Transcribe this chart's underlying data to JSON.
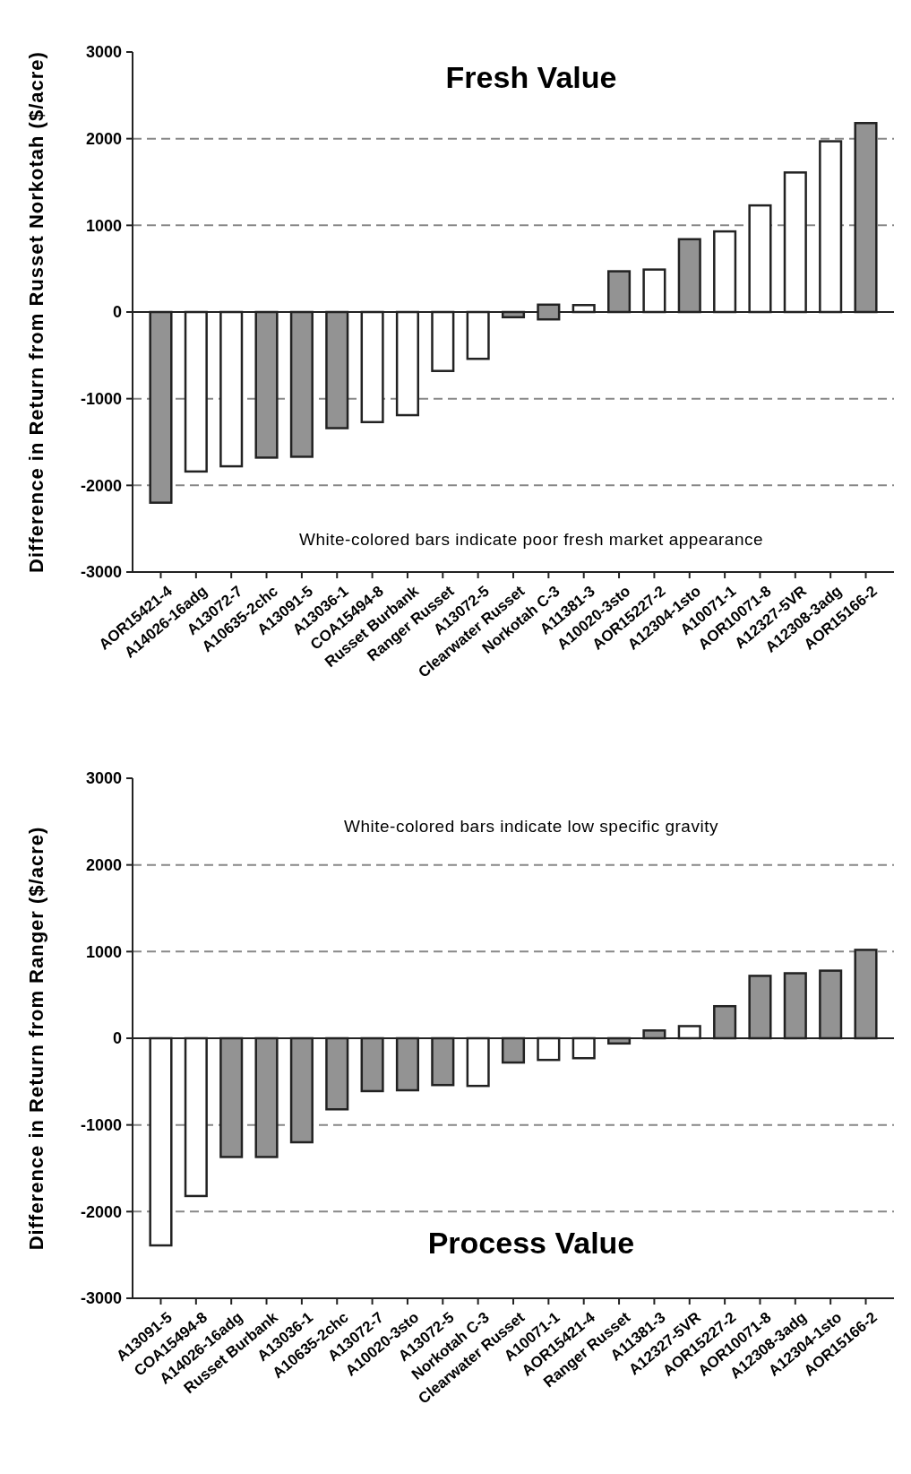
{
  "chart_data": [
    {
      "type": "bar",
      "title": "Fresh Value",
      "ylabel": "Difference in Return from Russet Norkotah ($/acre)",
      "annotations": [
        "White-colored bars indicate poor fresh market appearance"
      ],
      "categories": [
        "AOR15421-4",
        "A14026-16adg",
        "A13072-7",
        "A10635-2chc",
        "A13091-5",
        "A13036-1",
        "COA15494-8",
        "Russet Burbank",
        "Ranger Russet",
        "A13072-5",
        "Clearwater Russet",
        "Norkotah C-3",
        "A11381-3",
        "A10020-3sto",
        "AOR15227-2",
        "A12304-1sto",
        "A10071-1",
        "AOR10071-8",
        "A12327-5VR",
        "A12308-3adg",
        "AOR15166-2"
      ],
      "values": [
        -2200,
        -1840,
        -1780,
        -1680,
        -1670,
        -1340,
        -1270,
        -1190,
        -680,
        -540,
        -60,
        170,
        80,
        470,
        490,
        840,
        930,
        1230,
        1610,
        1970,
        2180
      ],
      "base": [
        0,
        0,
        0,
        0,
        0,
        0,
        0,
        0,
        0,
        0,
        0,
        -85,
        0,
        0,
        0,
        0,
        0,
        0,
        0,
        0,
        0
      ],
      "colors": [
        "#939393",
        "#ffffff",
        "#ffffff",
        "#939393",
        "#939393",
        "#939393",
        "#ffffff",
        "#ffffff",
        "#ffffff",
        "#ffffff",
        "#939393",
        "#939393",
        "#ffffff",
        "#939393",
        "#ffffff",
        "#939393",
        "#ffffff",
        "#ffffff",
        "#ffffff",
        "#ffffff",
        "#939393"
      ],
      "ylim": [
        -3000,
        3000
      ],
      "yticks": [
        -3000,
        -2000,
        -1000,
        0,
        1000,
        2000,
        3000
      ],
      "ref_lines": [
        {
          "axis": "y",
          "value": -2000,
          "line_style": "dashed"
        },
        {
          "axis": "y",
          "value": -1000,
          "line_style": "dashed"
        },
        {
          "axis": "y",
          "value": 1000,
          "line_style": "dashed"
        },
        {
          "axis": "y",
          "value": 2000,
          "line_style": "dashed"
        }
      ]
    },
    {
      "type": "bar",
      "title": "Process Value",
      "ylabel": "Difference in Return from Ranger ($/acre)",
      "annotations": [
        "White-colored bars indicate low specific gravity"
      ],
      "categories": [
        "A13091-5",
        "COA15494-8",
        "A14026-16adg",
        "Russet Burbank",
        "A13036-1",
        "A10635-2chc",
        "A13072-7",
        "A10020-3sto",
        "A13072-5",
        "Norkotah C-3",
        "Clearwater Russet",
        "A10071-1",
        "AOR15421-4",
        "Ranger Russet",
        "A11381-3",
        "A12327-5VR",
        "AOR15227-2",
        "AOR10071-8",
        "A12308-3adg",
        "A12304-1sto",
        "AOR15166-2"
      ],
      "values": [
        -2390,
        -1820,
        -1370,
        -1370,
        -1200,
        -820,
        -610,
        -600,
        -540,
        -550,
        -280,
        -250,
        -230,
        -60,
        90,
        140,
        370,
        720,
        750,
        780,
        1020
      ],
      "colors": [
        "#ffffff",
        "#ffffff",
        "#939393",
        "#939393",
        "#939393",
        "#939393",
        "#939393",
        "#939393",
        "#939393",
        "#ffffff",
        "#939393",
        "#ffffff",
        "#ffffff",
        "#939393",
        "#939393",
        "#ffffff",
        "#939393",
        "#939393",
        "#939393",
        "#939393",
        "#939393"
      ],
      "ylim": [
        -3000,
        3000
      ],
      "yticks": [
        -3000,
        -2000,
        -1000,
        0,
        1000,
        2000,
        3000
      ],
      "ref_lines": [
        {
          "axis": "y",
          "value": -2000,
          "line_style": "dashed"
        },
        {
          "axis": "y",
          "value": -1000,
          "line_style": "dashed"
        },
        {
          "axis": "y",
          "value": 1000,
          "line_style": "dashed"
        },
        {
          "axis": "y",
          "value": 2000,
          "line_style": "dashed"
        }
      ]
    }
  ]
}
